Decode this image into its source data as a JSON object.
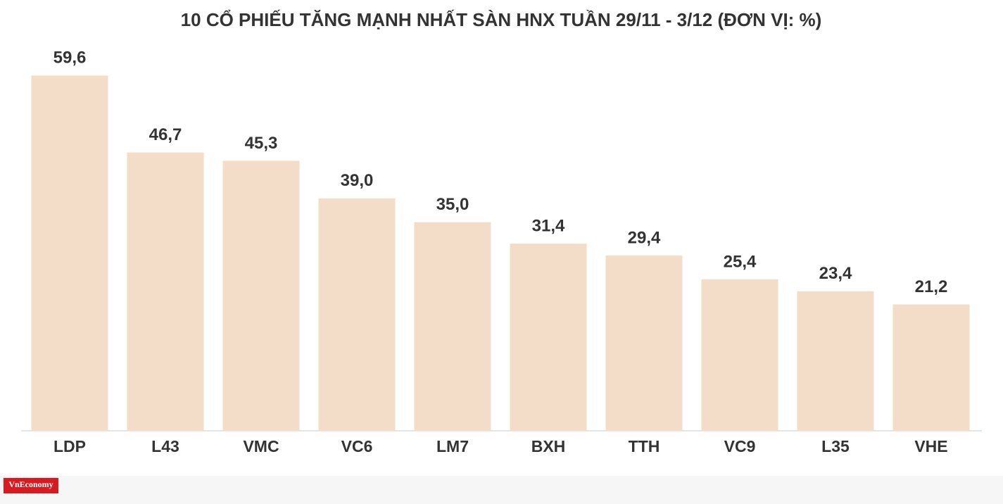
{
  "chart_data": {
    "type": "bar",
    "title": "10 CỔ PHIẾU TĂNG MẠNH NHẤT SÀN HNX TUẦN 29/11 - 3/12 (ĐƠN VỊ: %)",
    "categories": [
      "LDP",
      "L43",
      "VMC",
      "VC6",
      "LM7",
      "BXH",
      "TTH",
      "VC9",
      "L35",
      "VHE"
    ],
    "values": [
      59.6,
      46.7,
      45.3,
      39.0,
      35.0,
      31.4,
      29.4,
      25.4,
      23.4,
      21.2
    ],
    "value_labels": [
      "59,6",
      "46,7",
      "45,3",
      "39,0",
      "35,0",
      "31,4",
      "29,4",
      "25,4",
      "23,4",
      "21,2"
    ],
    "color": "#f3dcc8",
    "ylim": [
      0,
      60
    ]
  },
  "logo": {
    "text": "VnEconomy"
  }
}
